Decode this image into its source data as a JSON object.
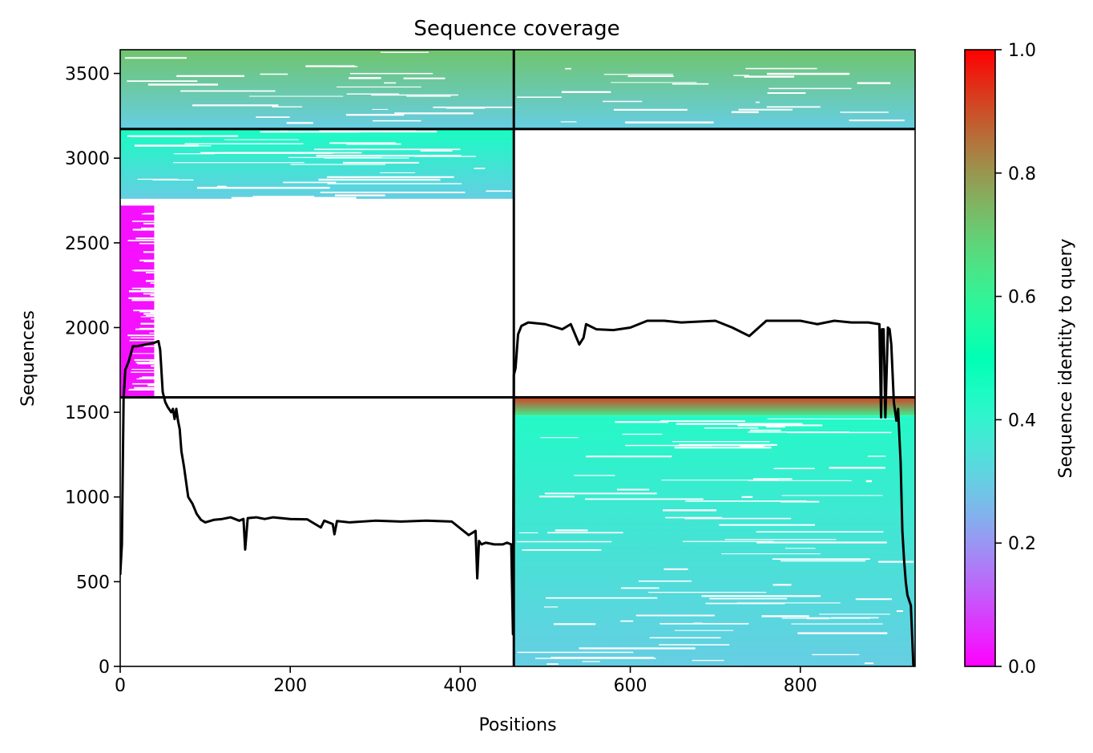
{
  "chart_data": {
    "type": "heatmap",
    "title": "Sequence coverage",
    "xlabel": "Positions",
    "ylabel": "Sequences",
    "xlim": [
      0,
      935
    ],
    "ylim": [
      0,
      3640
    ],
    "xticks": [
      0,
      200,
      400,
      600,
      800
    ],
    "yticks": [
      0,
      500,
      1000,
      1500,
      2000,
      2500,
      3000,
      3500
    ],
    "grid": false,
    "legend": "none",
    "colorbar": {
      "label": "Sequence identity to query",
      "colormap": "rainbow",
      "range": [
        0.0,
        1.0
      ],
      "ticks": [
        0.0,
        0.2,
        0.4,
        0.6,
        0.8,
        1.0
      ]
    },
    "block_boundaries": {
      "vertical_x": [
        463
      ],
      "horizontal_y": [
        1588,
        3172
      ]
    },
    "coverage_blocks": [
      {
        "x": [
          0,
          463
        ],
        "y": [
          3172,
          3640
        ],
        "identity_top": 0.72,
        "identity_bottom": 0.3
      },
      {
        "x": [
          463,
          935
        ],
        "y": [
          3172,
          3640
        ],
        "identity_top": 0.72,
        "identity_bottom": 0.3
      },
      {
        "x": [
          0,
          463
        ],
        "y": [
          2760,
          3172
        ],
        "identity_top": 0.45,
        "identity_bottom": 0.3
      },
      {
        "x": [
          0,
          40
        ],
        "y": [
          1588,
          2720
        ],
        "identity_top": 0.02,
        "identity_bottom": 0.02
      },
      {
        "x": [
          463,
          935
        ],
        "y": [
          1480,
          1588
        ],
        "identity_top": 0.92,
        "identity_bottom": 0.62
      },
      {
        "x": [
          463,
          935
        ],
        "y": [
          0,
          1480
        ],
        "identity_top": 0.43,
        "identity_bottom": 0.3
      }
    ],
    "coverage_line": {
      "x": [
        0,
        2,
        4,
        6,
        10,
        15,
        20,
        25,
        30,
        35,
        40,
        45,
        47,
        50,
        53,
        56,
        60,
        62,
        64,
        66,
        68,
        70,
        72,
        75,
        80,
        85,
        90,
        95,
        100,
        110,
        120,
        130,
        140,
        145,
        147,
        150,
        160,
        170,
        180,
        200,
        220,
        236,
        240,
        250,
        252,
        255,
        270,
        300,
        330,
        360,
        390,
        410,
        418,
        420,
        422,
        425,
        430,
        440,
        450,
        455,
        460,
        462,
        463,
        465,
        468,
        472,
        480,
        500,
        520,
        530,
        540,
        545,
        548,
        560,
        580,
        600,
        620,
        640,
        660,
        700,
        720,
        740,
        760,
        780,
        800,
        820,
        840,
        860,
        880,
        893,
        895,
        896,
        898,
        900,
        903,
        905,
        907,
        910,
        913,
        915,
        918,
        920,
        922,
        924,
        926,
        928,
        930,
        932,
        933
      ],
      "y": [
        540,
        720,
        1580,
        1750,
        1800,
        1890,
        1890,
        1895,
        1900,
        1905,
        1910,
        1920,
        1870,
        1620,
        1560,
        1530,
        1500,
        1520,
        1460,
        1520,
        1450,
        1400,
        1270,
        1180,
        1000,
        960,
        900,
        865,
        850,
        865,
        870,
        880,
        860,
        870,
        690,
        875,
        880,
        870,
        880,
        870,
        868,
        820,
        860,
        840,
        780,
        858,
        850,
        860,
        855,
        860,
        855,
        775,
        800,
        520,
        740,
        720,
        730,
        720,
        720,
        730,
        720,
        190,
        1720,
        1760,
        1960,
        2010,
        2030,
        2020,
        1990,
        2020,
        1900,
        1940,
        2020,
        1990,
        1985,
        2000,
        2040,
        2040,
        2030,
        2040,
        2000,
        1950,
        2040,
        2040,
        2040,
        2020,
        2040,
        2030,
        2030,
        2020,
        1470,
        1990,
        1990,
        1470,
        2000,
        1990,
        1900,
        1560,
        1450,
        1520,
        1200,
        800,
        630,
        500,
        420,
        390,
        360,
        120,
        0
      ]
    }
  }
}
